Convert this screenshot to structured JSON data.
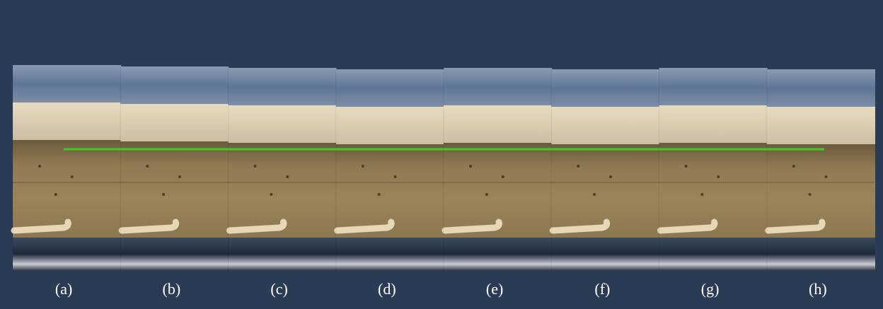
{
  "figure": {
    "panels": [
      {
        "label": "(a)"
      },
      {
        "label": "(b)"
      },
      {
        "label": "(c)"
      },
      {
        "label": "(d)"
      },
      {
        "label": "(e)"
      },
      {
        "label": "(f)"
      },
      {
        "label": "(g)"
      },
      {
        "label": "(h)"
      }
    ]
  }
}
